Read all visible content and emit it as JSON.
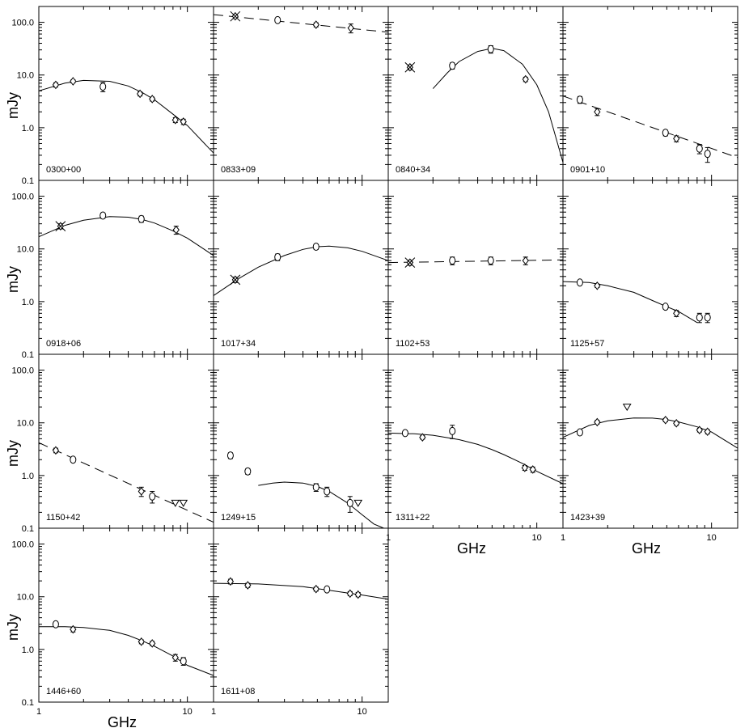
{
  "chart_data": {
    "type": "scatter",
    "xlim": [
      1,
      15
    ],
    "ylim": [
      0.1,
      200
    ],
    "x_scale": "log",
    "y_scale": "log",
    "grid": false,
    "ylabel": "mJy",
    "xlabel": "GHz",
    "y_tick_labels": [
      "0.1",
      "1.0",
      "10.0",
      "100.0"
    ],
    "x_tick_labels": [
      "1",
      "10"
    ],
    "panels": [
      {
        "name": "0300+00",
        "points": [
          {
            "x": 1.3,
            "y": 6.5,
            "err": 0.6,
            "marker": "diamond"
          },
          {
            "x": 1.7,
            "y": 7.6,
            "err": 0.5,
            "marker": "diamond"
          },
          {
            "x": 2.7,
            "y": 6.0,
            "err": 1.2,
            "marker": "circle"
          },
          {
            "x": 4.8,
            "y": 4.4,
            "err": 0.4,
            "marker": "diamond"
          },
          {
            "x": 5.8,
            "y": 3.5,
            "err": 0.3,
            "marker": "diamond"
          },
          {
            "x": 8.3,
            "y": 1.4,
            "err": 0.15,
            "marker": "diamond"
          },
          {
            "x": 9.4,
            "y": 1.3,
            "err": 0.15,
            "marker": "diamond"
          }
        ],
        "fit": {
          "style": "solid",
          "x": [
            1,
            1.5,
            2,
            3,
            4,
            5,
            6,
            8,
            10,
            15
          ],
          "y": [
            5.0,
            7.0,
            7.9,
            7.6,
            6.2,
            4.6,
            3.4,
            1.8,
            1.1,
            0.33
          ]
        }
      },
      {
        "name": "0833+09",
        "points": [
          {
            "x": 1.4,
            "y": 130,
            "err": 12,
            "marker": "cross"
          },
          {
            "x": 2.7,
            "y": 110,
            "err": 8,
            "marker": "circle"
          },
          {
            "x": 4.9,
            "y": 90,
            "err": 8,
            "marker": "diamond"
          },
          {
            "x": 8.4,
            "y": 78,
            "err": 15,
            "marker": "diamond"
          }
        ],
        "fit": {
          "style": "dashed",
          "x": [
            1,
            15
          ],
          "y": [
            140,
            65
          ]
        }
      },
      {
        "name": "0840+34",
        "points": [
          {
            "x": 1.4,
            "y": 14,
            "err": 1.5,
            "marker": "cross"
          },
          {
            "x": 2.7,
            "y": 15,
            "err": 2,
            "marker": "circle"
          },
          {
            "x": 4.9,
            "y": 31,
            "err": 5,
            "marker": "circle"
          },
          {
            "x": 8.4,
            "y": 8.3,
            "err": 0.8,
            "marker": "diamond"
          }
        ],
        "fit": {
          "style": "solid",
          "x": [
            2,
            2.5,
            3,
            4,
            5,
            6,
            8,
            10,
            12,
            15
          ],
          "y": [
            5.5,
            11,
            18,
            28,
            32,
            29,
            16,
            6.5,
            2.0,
            0.22
          ]
        }
      },
      {
        "name": "0901+10",
        "points": [
          {
            "x": 1.3,
            "y": 3.4,
            "err": 0.5,
            "marker": "circle"
          },
          {
            "x": 1.7,
            "y": 2.0,
            "err": 0.3,
            "marker": "diamond"
          },
          {
            "x": 4.9,
            "y": 0.8,
            "err": 0.1,
            "marker": "circle"
          },
          {
            "x": 5.8,
            "y": 0.62,
            "err": 0.08,
            "marker": "diamond"
          },
          {
            "x": 8.3,
            "y": 0.4,
            "err": 0.08,
            "marker": "circle"
          },
          {
            "x": 9.4,
            "y": 0.32,
            "err": 0.1,
            "marker": "circle"
          }
        ],
        "fit": {
          "style": "dashed",
          "x": [
            1,
            15
          ],
          "y": [
            4.0,
            0.27
          ]
        }
      },
      {
        "name": "0918+06",
        "points": [
          {
            "x": 1.4,
            "y": 27,
            "err": 3,
            "marker": "cross"
          },
          {
            "x": 2.7,
            "y": 43,
            "err": 5,
            "marker": "circle"
          },
          {
            "x": 4.9,
            "y": 37,
            "err": 5,
            "marker": "circle"
          },
          {
            "x": 8.4,
            "y": 23,
            "err": 4,
            "marker": "diamond"
          }
        ],
        "fit": {
          "style": "solid",
          "x": [
            1,
            1.5,
            2,
            3,
            4,
            5,
            6,
            8,
            10,
            15
          ],
          "y": [
            17,
            28,
            35,
            41,
            40,
            36,
            31,
            22,
            16,
            7.5
          ]
        }
      },
      {
        "name": "1017+34",
        "points": [
          {
            "x": 1.4,
            "y": 2.6,
            "err": 0.3,
            "marker": "cross"
          },
          {
            "x": 2.7,
            "y": 7.0,
            "err": 1.0,
            "marker": "circle"
          },
          {
            "x": 4.9,
            "y": 11,
            "err": 1.2,
            "marker": "circle"
          }
        ],
        "fit": {
          "style": "solid",
          "x": [
            1,
            1.5,
            2,
            3,
            4,
            5,
            6,
            8,
            10,
            15
          ],
          "y": [
            1.3,
            2.8,
            4.5,
            7.5,
            9.8,
            11,
            11.3,
            10.5,
            9.0,
            6.0
          ]
        }
      },
      {
        "name": "1102+53",
        "points": [
          {
            "x": 1.4,
            "y": 5.5,
            "err": 0.6,
            "marker": "cross"
          },
          {
            "x": 2.7,
            "y": 6.0,
            "err": 1.0,
            "marker": "circle"
          },
          {
            "x": 4.9,
            "y": 6.0,
            "err": 1.0,
            "marker": "circle"
          },
          {
            "x": 8.4,
            "y": 6.0,
            "err": 1.0,
            "marker": "diamond"
          }
        ],
        "fit": {
          "style": "dashed",
          "x": [
            1,
            15
          ],
          "y": [
            5.5,
            6.2
          ]
        }
      },
      {
        "name": "1125+57",
        "points": [
          {
            "x": 1.3,
            "y": 2.3,
            "err": 0.2,
            "marker": "circle"
          },
          {
            "x": 1.7,
            "y": 2.0,
            "err": 0.15,
            "marker": "diamond"
          },
          {
            "x": 4.9,
            "y": 0.8,
            "err": 0.08,
            "marker": "circle"
          },
          {
            "x": 5.8,
            "y": 0.6,
            "err": 0.08,
            "marker": "diamond"
          },
          {
            "x": 8.3,
            "y": 0.5,
            "err": 0.1,
            "marker": "circle"
          },
          {
            "x": 9.4,
            "y": 0.5,
            "err": 0.1,
            "marker": "circle"
          }
        ],
        "fit": {
          "style": "solid",
          "x": [
            1,
            1.5,
            2,
            3,
            4,
            5,
            6,
            8
          ],
          "y": [
            2.4,
            2.3,
            2.0,
            1.5,
            1.05,
            0.8,
            0.65,
            0.4
          ]
        }
      },
      {
        "name": "1150+42",
        "points": [
          {
            "x": 1.3,
            "y": 3.0,
            "err": 0.3,
            "marker": "diamond"
          },
          {
            "x": 1.7,
            "y": 2.0,
            "err": 0.2,
            "marker": "circle"
          },
          {
            "x": 4.9,
            "y": 0.5,
            "err": 0.1,
            "marker": "diamond"
          },
          {
            "x": 5.8,
            "y": 0.4,
            "err": 0.1,
            "marker": "circle"
          },
          {
            "x": 8.3,
            "y": 0.3,
            "marker": "triangle"
          },
          {
            "x": 9.4,
            "y": 0.3,
            "marker": "triangle"
          }
        ],
        "fit": {
          "style": "dashed",
          "x": [
            1,
            15
          ],
          "y": [
            4.2,
            0.13
          ]
        }
      },
      {
        "name": "1249+15",
        "points": [
          {
            "x": 1.3,
            "y": 2.4,
            "err": 0.3,
            "marker": "circle"
          },
          {
            "x": 1.7,
            "y": 1.2,
            "err": 0.15,
            "marker": "circle"
          },
          {
            "x": 4.9,
            "y": 0.6,
            "err": 0.1,
            "marker": "circle"
          },
          {
            "x": 5.8,
            "y": 0.5,
            "err": 0.1,
            "marker": "circle"
          },
          {
            "x": 8.3,
            "y": 0.3,
            "err": 0.1,
            "marker": "circle"
          },
          {
            "x": 9.4,
            "y": 0.3,
            "marker": "triangle"
          }
        ],
        "fit": {
          "style": "solid",
          "x": [
            2,
            2.5,
            3,
            4,
            5,
            6,
            8,
            10,
            12,
            14
          ],
          "y": [
            0.65,
            0.72,
            0.75,
            0.72,
            0.62,
            0.5,
            0.3,
            0.18,
            0.12,
            0.1
          ]
        }
      },
      {
        "name": "1311+22",
        "points": [
          {
            "x": 1.3,
            "y": 6.4,
            "err": 0.5,
            "marker": "circle"
          },
          {
            "x": 1.7,
            "y": 5.3,
            "err": 0.4,
            "marker": "diamond"
          },
          {
            "x": 2.7,
            "y": 7.0,
            "err": 2.0,
            "marker": "circle"
          },
          {
            "x": 8.3,
            "y": 1.4,
            "err": 0.15,
            "marker": "diamond"
          },
          {
            "x": 9.4,
            "y": 1.3,
            "err": 0.15,
            "marker": "diamond"
          }
        ],
        "fit": {
          "style": "solid",
          "x": [
            1,
            1.5,
            2,
            3,
            4,
            5,
            6,
            8,
            10,
            15
          ],
          "y": [
            6.4,
            6.2,
            5.8,
            4.8,
            3.9,
            3.1,
            2.5,
            1.7,
            1.2,
            0.7
          ]
        }
      },
      {
        "name": "1423+39",
        "points": [
          {
            "x": 1.3,
            "y": 6.6,
            "err": 0.6,
            "marker": "circle"
          },
          {
            "x": 1.7,
            "y": 10.3,
            "err": 0.8,
            "marker": "diamond"
          },
          {
            "x": 2.7,
            "y": 20,
            "marker": "triangle"
          },
          {
            "x": 4.9,
            "y": 11.3,
            "err": 0.8,
            "marker": "diamond"
          },
          {
            "x": 5.8,
            "y": 9.8,
            "err": 0.8,
            "marker": "diamond"
          },
          {
            "x": 8.3,
            "y": 7.3,
            "err": 0.6,
            "marker": "diamond"
          },
          {
            "x": 9.4,
            "y": 6.8,
            "err": 0.6,
            "marker": "diamond"
          }
        ],
        "fit": {
          "style": "solid",
          "x": [
            1,
            1.5,
            2,
            3,
            4,
            5,
            6,
            8,
            10,
            15
          ],
          "y": [
            5.3,
            8.9,
            10.9,
            12.4,
            12.3,
            11.5,
            10.4,
            8.4,
            6.7,
            3.3
          ]
        }
      },
      {
        "name": "1446+60",
        "points": [
          {
            "x": 1.3,
            "y": 3.0,
            "err": 0.3,
            "marker": "circle"
          },
          {
            "x": 1.7,
            "y": 2.4,
            "err": 0.25,
            "marker": "diamond"
          },
          {
            "x": 4.9,
            "y": 1.4,
            "err": 0.12,
            "marker": "diamond"
          },
          {
            "x": 5.8,
            "y": 1.3,
            "err": 0.12,
            "marker": "diamond"
          },
          {
            "x": 8.3,
            "y": 0.7,
            "err": 0.1,
            "marker": "diamond"
          },
          {
            "x": 9.4,
            "y": 0.6,
            "err": 0.1,
            "marker": "circle"
          }
        ],
        "fit": {
          "style": "solid",
          "x": [
            1,
            1.5,
            2,
            3,
            4,
            5,
            6,
            8,
            10,
            15
          ],
          "y": [
            2.7,
            2.7,
            2.6,
            2.3,
            1.85,
            1.45,
            1.15,
            0.75,
            0.5,
            0.32
          ]
        }
      },
      {
        "name": "1611+08",
        "points": [
          {
            "x": 1.3,
            "y": 19.5,
            "err": 2.0,
            "marker": "diamond"
          },
          {
            "x": 1.7,
            "y": 16.5,
            "err": 1.5,
            "marker": "diamond"
          },
          {
            "x": 4.9,
            "y": 14,
            "err": 1.2,
            "marker": "diamond"
          },
          {
            "x": 5.8,
            "y": 13.8,
            "err": 1.2,
            "marker": "circle"
          },
          {
            "x": 8.3,
            "y": 11.5,
            "err": 1.0,
            "marker": "diamond"
          },
          {
            "x": 9.4,
            "y": 11.0,
            "err": 1.0,
            "marker": "diamond"
          }
        ],
        "fit": {
          "style": "solid",
          "x": [
            1,
            2,
            4,
            6,
            8,
            10,
            15
          ],
          "y": [
            18,
            17.5,
            15.5,
            13.3,
            11.8,
            10.8,
            9.0
          ]
        }
      }
    ]
  }
}
